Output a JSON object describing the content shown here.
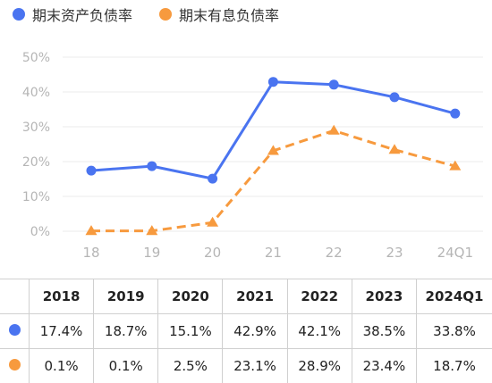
{
  "colors": {
    "series1": "#4a74f0",
    "series2": "#f79a3e",
    "grid": "#ebebeb",
    "tick": "#b5b5b5"
  },
  "legend": {
    "series1_label": "期末资产负债率",
    "series2_label": "期末有息负债率"
  },
  "chart_data": {
    "type": "line",
    "x": [
      "18",
      "19",
      "20",
      "21",
      "22",
      "23",
      "24Q1"
    ],
    "y_ticks": [
      "0%",
      "10%",
      "20%",
      "30%",
      "40%",
      "50%"
    ],
    "ylim": [
      0,
      50
    ],
    "grid": true,
    "legend_position": "top-left",
    "series": [
      {
        "name": "期末资产负债率",
        "values": [
          17.4,
          18.7,
          15.1,
          42.9,
          42.1,
          38.5,
          33.8
        ],
        "marker": "circle",
        "line": "solid",
        "color": "#4a74f0"
      },
      {
        "name": "期末有息负债率",
        "values": [
          0.1,
          0.1,
          2.5,
          23.1,
          28.9,
          23.4,
          18.7
        ],
        "marker": "triangle",
        "line": "dashed",
        "color": "#f79a3e"
      }
    ]
  },
  "table": {
    "headers": [
      "",
      "2018",
      "2019",
      "2020",
      "2021",
      "2022",
      "2023",
      "2024Q1"
    ],
    "rows": [
      {
        "series": "series1",
        "cells": [
          "17.4%",
          "18.7%",
          "15.1%",
          "42.9%",
          "42.1%",
          "38.5%",
          "33.8%"
        ]
      },
      {
        "series": "series2",
        "cells": [
          "0.1%",
          "0.1%",
          "2.5%",
          "23.1%",
          "28.9%",
          "23.4%",
          "18.7%"
        ]
      }
    ]
  }
}
